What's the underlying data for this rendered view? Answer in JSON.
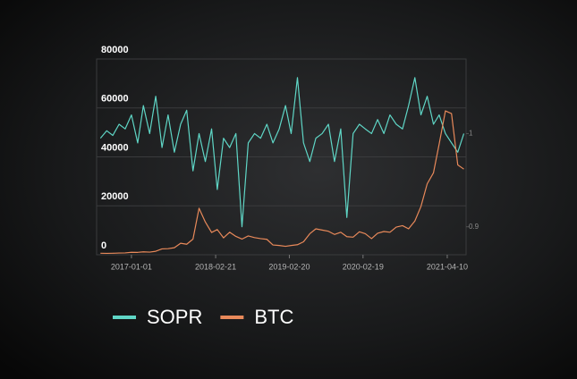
{
  "chart_data": {
    "type": "line",
    "x": [
      "2016-08-01",
      "2016-09-01",
      "2016-10-01",
      "2016-11-01",
      "2016-12-01",
      "2017-01-01",
      "2017-02-01",
      "2017-03-01",
      "2017-04-01",
      "2017-05-01",
      "2017-06-01",
      "2017-07-01",
      "2017-08-01",
      "2017-09-01",
      "2017-10-01",
      "2017-11-01",
      "2017-12-01",
      "2018-01-01",
      "2018-02-01",
      "2018-03-01",
      "2018-04-01",
      "2018-05-01",
      "2018-06-01",
      "2018-07-01",
      "2018-08-01",
      "2018-09-01",
      "2018-10-01",
      "2018-11-01",
      "2018-12-01",
      "2019-01-01",
      "2019-02-01",
      "2019-03-01",
      "2019-04-01",
      "2019-05-01",
      "2019-06-01",
      "2019-07-01",
      "2019-08-01",
      "2019-09-01",
      "2019-10-01",
      "2019-11-01",
      "2019-12-01",
      "2020-01-01",
      "2020-02-01",
      "2020-03-01",
      "2020-04-01",
      "2020-05-01",
      "2020-06-01",
      "2020-07-01",
      "2020-08-01",
      "2020-09-01",
      "2020-10-01",
      "2020-11-01",
      "2020-12-01",
      "2021-01-01",
      "2021-02-01",
      "2021-03-01",
      "2021-04-01",
      "2021-05-01",
      "2021-06-01",
      "2021-07-01"
    ],
    "series": [
      {
        "name": "SOPR",
        "color": "#5fd6c6",
        "axis": "y2",
        "values": [
          0.995,
          1.003,
          0.998,
          1.01,
          1.005,
          1.02,
          0.99,
          1.03,
          1.0,
          1.04,
          0.985,
          1.02,
          0.98,
          1.01,
          1.025,
          0.96,
          1.0,
          0.97,
          1.005,
          0.94,
          0.995,
          0.985,
          1.0,
          0.9,
          0.99,
          1.0,
          0.995,
          1.01,
          0.99,
          1.005,
          1.03,
          1.0,
          1.06,
          0.99,
          0.97,
          0.995,
          1.0,
          1.01,
          0.97,
          1.005,
          0.91,
          1.0,
          1.01,
          1.005,
          1.0,
          1.015,
          1.0,
          1.02,
          1.01,
          1.005,
          1.03,
          1.06,
          1.02,
          1.04,
          1.01,
          1.02,
          1.0,
          0.99,
          0.98,
          1.0
        ]
      },
      {
        "name": "BTC",
        "color": "#e8895a",
        "values": [
          620,
          570,
          610,
          700,
          750,
          1000,
          970,
          1190,
          1080,
          1420,
          2400,
          2480,
          2870,
          4700,
          4300,
          6400,
          19000,
          13400,
          9100,
          10300,
          6900,
          9200,
          7500,
          6400,
          7700,
          7000,
          6600,
          6300,
          4000,
          3800,
          3450,
          3800,
          4100,
          5300,
          8600,
          10600,
          10100,
          9600,
          8300,
          9200,
          7400,
          7200,
          9400,
          8600,
          6600,
          8800,
          9500,
          9200,
          11300,
          11900,
          10600,
          13800,
          19700,
          29000,
          33500,
          45200,
          58800,
          57700,
          36700,
          35000
        ]
      }
    ],
    "xlim": [
      "2016-07-13",
      "2021-07-12"
    ],
    "xticks": [
      "2017-01-01",
      "2018-02-21",
      "2019-02-20",
      "2020-02-19",
      "2021-04-10"
    ],
    "ylim": [
      0,
      80000
    ],
    "yticks": [
      0,
      20000,
      40000,
      60000,
      80000
    ],
    "y2lim": [
      0.87,
      1.08
    ],
    "y2ticks": [
      0.9,
      1
    ],
    "grid": true
  }
}
